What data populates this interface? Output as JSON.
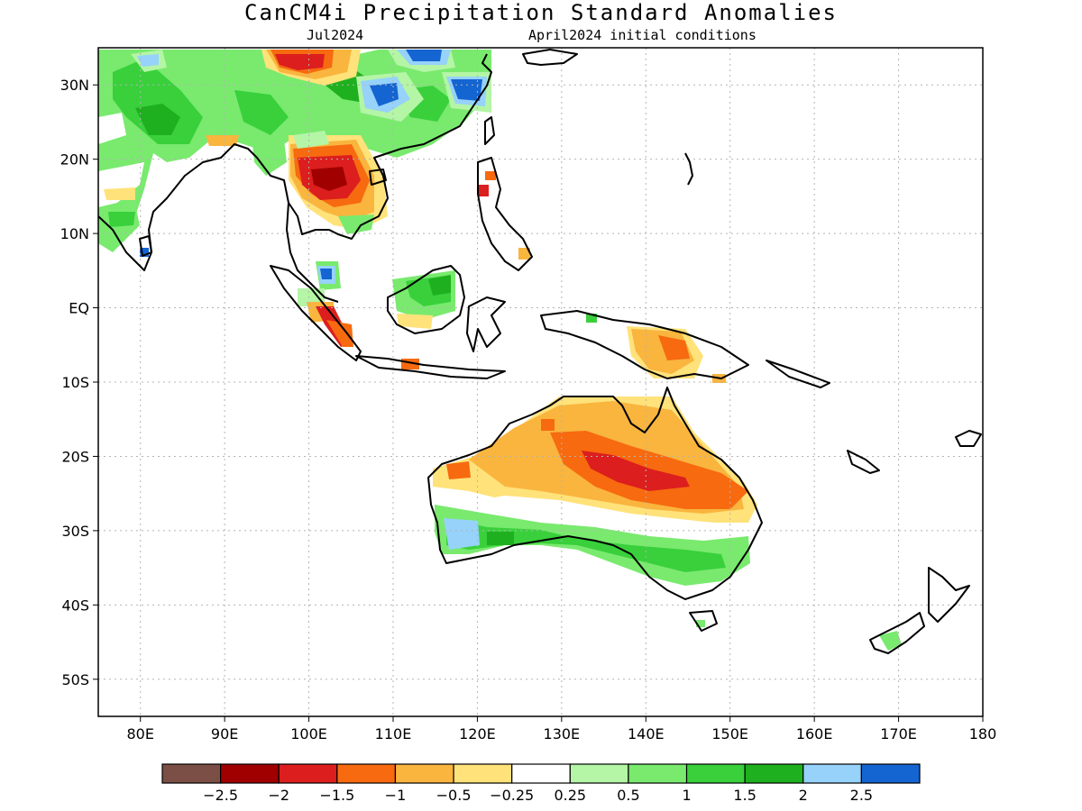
{
  "title": "CanCM4i Precipitation Standard Anomalies",
  "subtitle_left": "Jul2024",
  "subtitle_right": "April2024 initial conditions",
  "map": {
    "lon_range": [
      75,
      180
    ],
    "lat_range": [
      -55,
      35
    ],
    "lat_ticks": [
      {
        "value": 30,
        "label": "30N"
      },
      {
        "value": 20,
        "label": "20N"
      },
      {
        "value": 10,
        "label": "10N"
      },
      {
        "value": 0,
        "label": "EQ"
      },
      {
        "value": -10,
        "label": "10S"
      },
      {
        "value": -20,
        "label": "20S"
      },
      {
        "value": -30,
        "label": "30S"
      },
      {
        "value": -40,
        "label": "40S"
      },
      {
        "value": -50,
        "label": "50S"
      }
    ],
    "lon_ticks": [
      {
        "value": 80,
        "label": "80E"
      },
      {
        "value": 90,
        "label": "90E"
      },
      {
        "value": 100,
        "label": "100E"
      },
      {
        "value": 110,
        "label": "110E"
      },
      {
        "value": 120,
        "label": "120E"
      },
      {
        "value": 130,
        "label": "130E"
      },
      {
        "value": 140,
        "label": "140E"
      },
      {
        "value": 150,
        "label": "150E"
      },
      {
        "value": 160,
        "label": "160E"
      },
      {
        "value": 170,
        "label": "170E"
      },
      {
        "value": 180,
        "label": "180"
      }
    ]
  },
  "colorbar": {
    "colors": [
      "#7b4f46",
      "#a00000",
      "#dc1e1e",
      "#f76a10",
      "#f9b53e",
      "#ffe27a",
      "#ffffff",
      "#b4f5a6",
      "#79ea6e",
      "#39d03c",
      "#1eb01e",
      "#96d2fa",
      "#1464d2"
    ],
    "labels": [
      "−2.5",
      "−2",
      "−1.5",
      "−1",
      "−0.5",
      "−0.25",
      "0.25",
      "0.5",
      "1",
      "1.5",
      "2",
      "2.5"
    ]
  }
}
